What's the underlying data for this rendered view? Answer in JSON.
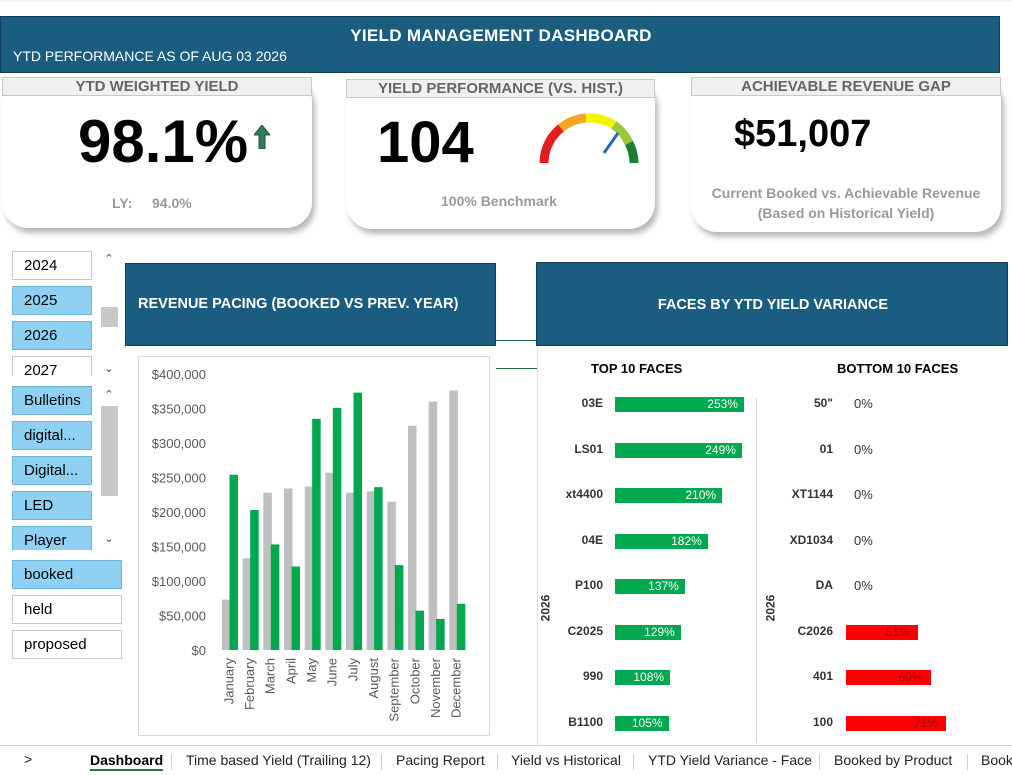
{
  "header": {
    "title": "YIELD MANAGEMENT DASHBOARD",
    "subtitle": "YTD PERFORMANCE AS OF AUG 03 2026"
  },
  "kpi": {
    "weighted": {
      "title": "YTD WEIGHTED YIELD",
      "value": "98.1%",
      "ly_label": "LY:",
      "ly_value": "94.0%",
      "trend_icon": "up-arrow-icon"
    },
    "performance": {
      "title": "YIELD PERFORMANCE (VS. HIST.)",
      "value": "104",
      "note": "100% Benchmark",
      "gauge_fraction": 0.85
    },
    "gap": {
      "title": "ACHIEVABLE REVENUE GAP",
      "value": "$51,007",
      "note1": "Current Booked vs. Achievable Revenue",
      "note2": "(Based on Historical Yield)"
    }
  },
  "slicers": {
    "years": [
      {
        "label": "2024",
        "selected": false
      },
      {
        "label": "2025",
        "selected": true
      },
      {
        "label": "2026",
        "selected": true
      },
      {
        "label": "2027",
        "selected": false
      }
    ],
    "products": [
      {
        "label": "Bulletins",
        "selected": true
      },
      {
        "label": "digital...",
        "selected": true
      },
      {
        "label": "Digital...",
        "selected": true
      },
      {
        "label": "LED",
        "selected": true
      },
      {
        "label": "Player",
        "selected": true
      }
    ],
    "status": [
      {
        "label": "booked",
        "selected": true
      },
      {
        "label": "held",
        "selected": false
      },
      {
        "label": "proposed",
        "selected": false
      }
    ]
  },
  "sections": {
    "pacing_title": "REVENUE PACING (BOOKED VS PREV. YEAR)",
    "faces_title": "FACES BY YTD YIELD VARIANCE"
  },
  "chart_data": {
    "type": "bar",
    "categories": [
      "January",
      "February",
      "March",
      "April",
      "May",
      "June",
      "July",
      "August",
      "September",
      "October",
      "November",
      "December"
    ],
    "series": [
      {
        "values": [
          73000,
          133000,
          228000,
          234000,
          237000,
          257000,
          228000,
          230000,
          215000,
          325000,
          360000,
          376000
        ],
        "color": "#bfbfbf"
      },
      {
        "values": [
          254000,
          203000,
          153000,
          121000,
          335000,
          351000,
          373000,
          236000,
          123000,
          57000,
          45000,
          67000
        ],
        "color": "#00a84f"
      }
    ],
    "yticks": [
      "$400,000",
      "$350,000",
      "$300,000",
      "$250,000",
      "$200,000",
      "$150,000",
      "$100,000",
      "$50,000",
      "$0"
    ],
    "ylim": [
      0,
      400000
    ]
  },
  "faces": {
    "top_title": "TOP 10 FACES",
    "bottom_title": "BOTTOM 10 FACES",
    "axis_label": "2026",
    "top": [
      {
        "name": "03E",
        "value": 253,
        "label": "253%"
      },
      {
        "name": "LS01",
        "value": 249,
        "label": "249%"
      },
      {
        "name": "xt4400",
        "value": 210,
        "label": "210%"
      },
      {
        "name": "04E",
        "value": 182,
        "label": "182%"
      },
      {
        "name": "P100",
        "value": 137,
        "label": "137%"
      },
      {
        "name": "C2025",
        "value": 129,
        "label": "129%"
      },
      {
        "name": "990",
        "value": 108,
        "label": "108%"
      },
      {
        "name": "B1100",
        "value": 105,
        "label": "105%"
      }
    ],
    "bottom": [
      {
        "name": "50\"",
        "value": 0,
        "label": "0%"
      },
      {
        "name": "01",
        "value": 0,
        "label": "0%"
      },
      {
        "name": "XT1144",
        "value": 0,
        "label": "0%"
      },
      {
        "name": "XD1034",
        "value": 0,
        "label": "0%"
      },
      {
        "name": "DA",
        "value": 0,
        "label": "0%"
      },
      {
        "name": "C2026",
        "value": 51,
        "label": "51%"
      },
      {
        "name": "401",
        "value": 60,
        "label": "60%"
      },
      {
        "name": "100",
        "value": 71,
        "label": "71%"
      }
    ]
  },
  "tabs": {
    "nav_arrow": ">",
    "items": [
      "Dashboard",
      "Time based Yield (Trailing 12)",
      "Pacing Report",
      "Yield vs Historical",
      "YTD Yield Variance - Face",
      "Booked by Product",
      "Book"
    ]
  },
  "colors": {
    "header": "#1a5d80",
    "green": "#00a84f",
    "red": "#ff0000",
    "slicer_selected": "#8fd1f2"
  }
}
